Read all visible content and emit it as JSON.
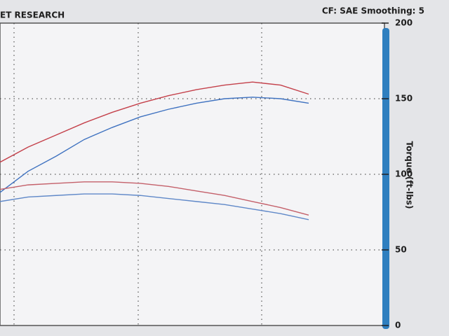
{
  "chart_data": {
    "type": "line",
    "title": "ET RESEARCH",
    "subtitle": "CF: SAE  Smoothing: 5",
    "y_label": "Torque (ft-lbs)",
    "categories": [
      null,
      null,
      null,
      null,
      null,
      null,
      null,
      null,
      null,
      null,
      null,
      null
    ],
    "series": [
      {
        "color": "#c4404a",
        "values": [
          108,
          118,
          126,
          134,
          141,
          147,
          152,
          156,
          159,
          161,
          159,
          153
        ]
      },
      {
        "color": "#3f72c0",
        "values": [
          88,
          102,
          112,
          123,
          131,
          138,
          143,
          147,
          150,
          151,
          150,
          147
        ]
      },
      {
        "color": "#c4606a",
        "values": [
          90,
          93,
          94,
          95,
          95,
          94,
          92,
          89,
          86,
          82,
          78,
          73
        ]
      },
      {
        "color": "#5f88c8",
        "values": [
          82,
          85,
          86,
          87,
          87,
          86,
          84,
          82,
          80,
          77,
          74,
          70
        ]
      }
    ],
    "ylim": [
      0,
      200
    ],
    "yticks": [
      0,
      50,
      100,
      150,
      200
    ],
    "grid": true
  }
}
